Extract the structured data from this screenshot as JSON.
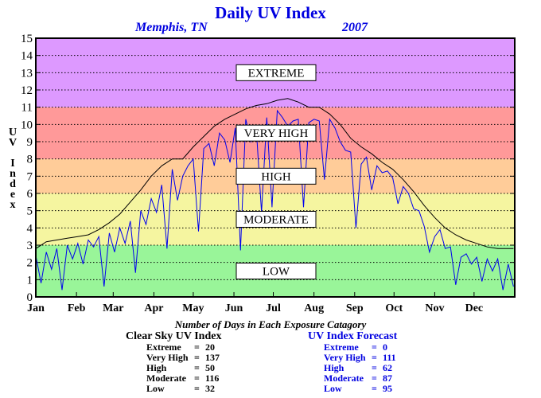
{
  "title": "Daily UV Index",
  "location": "Memphis, TN",
  "year": "2007",
  "ylabel_chars": [
    "U",
    "V",
    "",
    "I",
    "n",
    "d",
    "e",
    "x"
  ],
  "colors": {
    "low": "#99f599",
    "moderate": "#f5f5a0",
    "high": "#ffcc99",
    "very_high": "#ff9999",
    "extreme": "#dd99ff",
    "clear_line": "#000000",
    "forecast_line": "#0000ee",
    "title": "#0000e0"
  },
  "chart_data": {
    "type": "line",
    "ylim": [
      0,
      15
    ],
    "xlim": [
      0,
      365
    ],
    "yticks": [
      "0",
      "1",
      "2",
      "3",
      "4",
      "5",
      "6",
      "7",
      "8",
      "9",
      "10",
      "11",
      "12",
      "13",
      "14",
      "15"
    ],
    "month_labels": [
      "Jan",
      "Feb",
      "Mar",
      "Apr",
      "May",
      "Jun",
      "Jul",
      "Aug",
      "Sep",
      "Oct",
      "Nov",
      "Dec"
    ],
    "bands": [
      {
        "label": "LOW",
        "from": 0,
        "to": 3
      },
      {
        "label": "MODERATE",
        "from": 3,
        "to": 6
      },
      {
        "label": "HIGH",
        "from": 6,
        "to": 8
      },
      {
        "label": "VERY HIGH",
        "from": 8,
        "to": 11
      },
      {
        "label": "EXTREME",
        "from": 11,
        "to": 15
      }
    ],
    "grid": true,
    "series": [
      {
        "name": "Clear Sky UV Index",
        "color": "#000000",
        "x": [
          0,
          8,
          16,
          24,
          32,
          40,
          48,
          56,
          64,
          72,
          80,
          88,
          96,
          104,
          112,
          120,
          128,
          136,
          144,
          152,
          160,
          168,
          176,
          184,
          192,
          200,
          208,
          216,
          224,
          232,
          240,
          248,
          256,
          264,
          272,
          280,
          288,
          296,
          304,
          312,
          320,
          328,
          336,
          344,
          352,
          364
        ],
        "values": [
          2.8,
          3.2,
          3.3,
          3.4,
          3.5,
          3.6,
          3.9,
          4.3,
          4.8,
          5.5,
          6.2,
          7.0,
          7.6,
          8.0,
          8.0,
          8.7,
          9.3,
          9.9,
          10.3,
          10.6,
          10.9,
          11.1,
          11.2,
          11.4,
          11.5,
          11.3,
          11.0,
          11.0,
          10.6,
          10.0,
          9.2,
          8.7,
          8.3,
          7.8,
          7.4,
          6.8,
          6.1,
          5.3,
          4.6,
          4.0,
          3.6,
          3.3,
          3.1,
          2.9,
          2.8,
          2.8
        ]
      },
      {
        "name": "UV Index Forecast",
        "color": "#0000ee",
        "x": [
          0,
          4,
          8,
          12,
          16,
          20,
          24,
          28,
          32,
          36,
          40,
          44,
          48,
          52,
          56,
          60,
          64,
          68,
          72,
          76,
          80,
          84,
          88,
          92,
          96,
          100,
          104,
          108,
          112,
          116,
          120,
          124,
          128,
          132,
          136,
          140,
          144,
          148,
          152,
          156,
          160,
          164,
          168,
          172,
          176,
          180,
          184,
          188,
          192,
          196,
          200,
          204,
          208,
          212,
          216,
          220,
          224,
          228,
          232,
          236,
          240,
          244,
          248,
          252,
          256,
          260,
          264,
          268,
          272,
          276,
          280,
          284,
          288,
          292,
          296,
          300,
          304,
          308,
          312,
          316,
          320,
          324,
          328,
          332,
          336,
          340,
          344,
          348,
          352,
          356,
          360,
          364
        ],
        "values": [
          2.4,
          0.8,
          2.6,
          1.6,
          2.8,
          0.4,
          3.0,
          2.2,
          3.1,
          1.9,
          3.3,
          2.9,
          3.5,
          0.6,
          3.7,
          2.6,
          4.0,
          3.1,
          4.4,
          1.4,
          5.0,
          4.2,
          5.7,
          4.9,
          6.5,
          2.8,
          7.4,
          5.6,
          7.0,
          7.6,
          8.0,
          3.8,
          8.6,
          8.9,
          7.6,
          9.5,
          9.1,
          7.8,
          9.8,
          2.7,
          10.3,
          9.0,
          9.8,
          4.9,
          10.4,
          5.2,
          10.8,
          10.4,
          9.9,
          10.2,
          10.3,
          5.2,
          10.1,
          10.3,
          10.2,
          6.8,
          10.3,
          9.8,
          9.0,
          8.5,
          8.4,
          4.0,
          7.7,
          8.1,
          6.2,
          7.6,
          7.2,
          7.3,
          6.9,
          5.4,
          6.4,
          6.0,
          5.1,
          5.0,
          4.1,
          2.6,
          3.5,
          3.9,
          2.8,
          2.9,
          0.7,
          2.3,
          2.5,
          1.9,
          2.3,
          0.9,
          2.2,
          1.5,
          2.2,
          0.4,
          1.9,
          0.6
        ]
      }
    ]
  },
  "stats": {
    "title": "Number of Days in Each Exposure Catagory",
    "clear": {
      "heading": "Clear Sky UV Index",
      "rows": [
        {
          "label": "Extreme",
          "eq": "=",
          "value": "20"
        },
        {
          "label": "Very High",
          "eq": "=",
          "value": "137"
        },
        {
          "label": "High",
          "eq": "=",
          "value": "50"
        },
        {
          "label": "Moderate",
          "eq": "=",
          "value": "116"
        },
        {
          "label": "Low",
          "eq": "=",
          "value": "32"
        }
      ]
    },
    "forecast": {
      "heading": "UV Index Forecast",
      "rows": [
        {
          "label": "Extreme",
          "eq": "=",
          "value": "0"
        },
        {
          "label": "Very High",
          "eq": "=",
          "value": "111"
        },
        {
          "label": "High",
          "eq": "=",
          "value": "62"
        },
        {
          "label": "Moderate",
          "eq": "=",
          "value": "87"
        },
        {
          "label": "Low",
          "eq": "=",
          "value": "95"
        }
      ]
    }
  }
}
